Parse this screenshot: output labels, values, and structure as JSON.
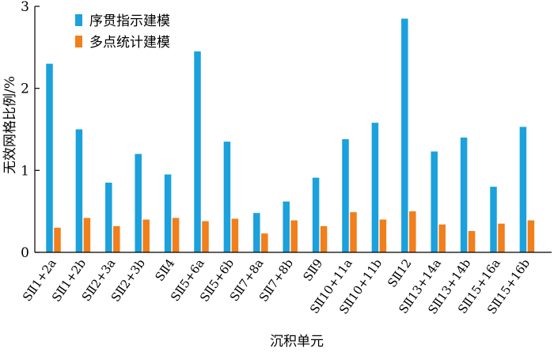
{
  "chart_data": {
    "type": "bar",
    "title": "",
    "xlabel": "沉积单元",
    "ylabel": "无效网格比例/%",
    "ylim": [
      0,
      3
    ],
    "yticks": [
      0,
      1,
      2,
      3
    ],
    "grid": false,
    "legend_position": "top-left",
    "categories": [
      "SⅡ1+2a",
      "SⅡ1+2b",
      "SⅡ2+3a",
      "SⅡ2+3b",
      "SⅡ4",
      "SⅡ5+6a",
      "SⅡ5+6b",
      "SⅡ7+8a",
      "SⅡ7+8b",
      "SⅡ9",
      "SⅡ10+11a",
      "SⅡ10+11b",
      "SⅡ12",
      "SⅡ13+14a",
      "SⅡ13+14b",
      "SⅡ15+16a",
      "SⅡ15+16b"
    ],
    "series": [
      {
        "name": "序贯指示建模",
        "color": "#1ba1dc",
        "values": [
          2.3,
          1.5,
          0.85,
          1.2,
          0.95,
          2.45,
          1.35,
          0.48,
          0.62,
          0.91,
          1.38,
          1.58,
          2.85,
          1.23,
          1.4,
          0.8,
          1.53
        ]
      },
      {
        "name": "多点统计建模",
        "color": "#f07f1c",
        "values": [
          0.3,
          0.42,
          0.32,
          0.4,
          0.42,
          0.38,
          0.41,
          0.23,
          0.39,
          0.32,
          0.49,
          0.4,
          0.5,
          0.34,
          0.26,
          0.35,
          0.39
        ]
      }
    ]
  }
}
